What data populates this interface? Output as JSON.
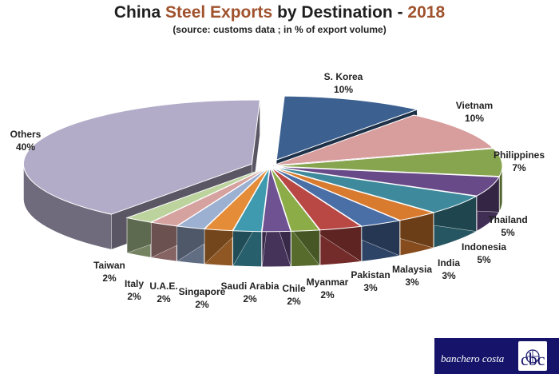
{
  "title": {
    "part1": "China ",
    "highlight1": "Steel Exports",
    "part2": " by Destination - ",
    "highlight2": "2018"
  },
  "subtitle": "(source: customs data ; in % of export volume)",
  "logo": {
    "text": "banchero costa",
    "mark": "cbc"
  },
  "chart_data": {
    "type": "pie",
    "style": "3d-exploded",
    "unit": "%",
    "slices": [
      {
        "label": "S. Korea",
        "value": 10,
        "display": "10%",
        "color": "#3c6190"
      },
      {
        "label": "Vietnam",
        "value": 10,
        "display": "10%",
        "color": "#d79e9d"
      },
      {
        "label": "Philippines",
        "value": 7,
        "display": "7%",
        "color": "#87a44e"
      },
      {
        "label": "Thailand",
        "value": 5,
        "display": "5%",
        "color": "#684a88"
      },
      {
        "label": "Indonesia",
        "value": 5,
        "display": "5%",
        "color": "#3e8a9c"
      },
      {
        "label": "India",
        "value": 3,
        "display": "3%",
        "color": "#d87b2f"
      },
      {
        "label": "Malaysia",
        "value": 3,
        "display": "3%",
        "color": "#4a6ea6"
      },
      {
        "label": "Pakistan",
        "value": 3,
        "display": "3%",
        "color": "#b94744"
      },
      {
        "label": "Myanmar",
        "value": 2,
        "display": "2%",
        "color": "#8cac48"
      },
      {
        "label": "Chile",
        "value": 2,
        "display": "2%",
        "color": "#6f5291"
      },
      {
        "label": "Saudi Arabia",
        "value": 2,
        "display": "2%",
        "color": "#3f9aaf"
      },
      {
        "label": "Singapore",
        "value": 2,
        "display": "2%",
        "color": "#e58c38"
      },
      {
        "label": "U.A.E.",
        "value": 2,
        "display": "2%",
        "color": "#9cb0d2"
      },
      {
        "label": "Italy",
        "value": 2,
        "display": "2%",
        "color": "#d6a2a0"
      },
      {
        "label": "Taiwan",
        "value": 2,
        "display": "2%",
        "color": "#bcd39e"
      },
      {
        "label": "Others",
        "value": 40,
        "display": "40%",
        "color": "#b3acc8"
      }
    ]
  }
}
